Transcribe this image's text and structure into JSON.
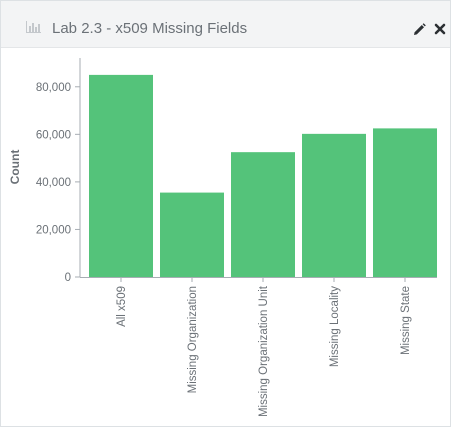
{
  "panel": {
    "title": "Lab 2.3 - x509 Missing Fields",
    "title_icon": "bar-chart-icon",
    "actions": [
      {
        "icon": "pencil-icon",
        "name": "edit"
      },
      {
        "icon": "close-icon",
        "name": "close"
      }
    ]
  },
  "colors": {
    "bar": "#54c37a",
    "header_bg": "#f3f4f5",
    "text": "#6b7177"
  },
  "chart_data": {
    "type": "bar",
    "title": "",
    "xlabel": "",
    "ylabel": "Count",
    "categories": [
      "All x509",
      "Missing Organization",
      "Missing Organization Unit",
      "Missing Locality",
      "Missing State"
    ],
    "values": [
      85000,
      35500,
      52500,
      60200,
      62500
    ],
    "ylim": [
      0,
      90000
    ],
    "yticks": [
      0,
      20000,
      40000,
      60000,
      80000
    ],
    "ytick_labels": [
      "0",
      "20,000",
      "40,000",
      "60,000",
      "80,000"
    ],
    "grid": false,
    "legend": "none"
  }
}
